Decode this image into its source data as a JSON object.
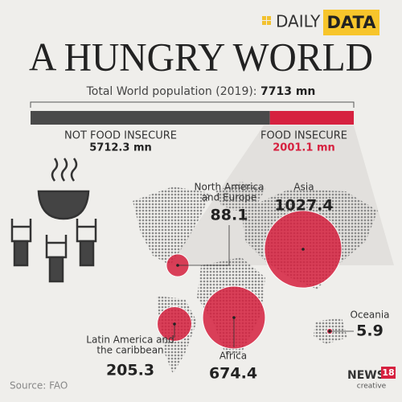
{
  "brand": {
    "prefix": "DAILY",
    "suffix": "DATA"
  },
  "title": "A HUNGRY WORLD",
  "total": {
    "text": "Total World population (2019):",
    "value": 7713,
    "value_label": "7713 mn"
  },
  "segments": [
    {
      "name": "NOT FOOD INSECURE",
      "value": 5712.3,
      "value_label": "5712.3 mn",
      "color": "#4a4a4a"
    },
    {
      "name": "FOOD INSECURE",
      "value": 2001.1,
      "value_label": "2001.1 mn",
      "color": "#d6213f"
    }
  ],
  "regions": [
    {
      "lines": [
        "North America",
        "and Europe"
      ],
      "value": 88.1
    },
    {
      "lines": [
        "Asia"
      ],
      "value": 1027.4
    },
    {
      "lines": [
        "Oceania"
      ],
      "value": 5.9
    },
    {
      "lines": [
        "Latin America and",
        "the caribbean"
      ],
      "value": 205.3
    },
    {
      "lines": [
        "Africa"
      ],
      "value": 674.4
    }
  ],
  "bubble_color": "#d6213f",
  "source": "Source: FAO",
  "logo": {
    "name": "NEWS",
    "number": "18",
    "tag": "creative"
  }
}
